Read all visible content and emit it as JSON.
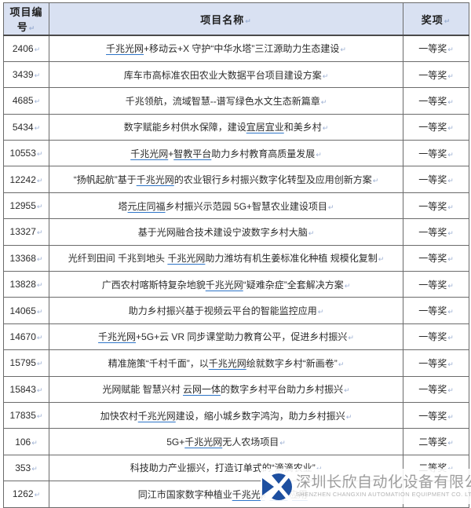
{
  "table": {
    "headers": {
      "code": "项目编号",
      "name": "项目名称",
      "award": "奖项"
    },
    "end_mark": "↵",
    "rows": [
      {
        "code": "2406",
        "award": "一等奖",
        "parts": [
          {
            "t": "千兆光网",
            "u": true
          },
          {
            "t": "+移动云+X 守护“中华水塔”三江源助力生态建设",
            "u": false
          }
        ]
      },
      {
        "code": "3439",
        "award": "一等奖",
        "parts": [
          {
            "t": "库车市高标准农田农业大数据平台项目建设方案",
            "u": false
          }
        ]
      },
      {
        "code": "4685",
        "award": "一等奖",
        "parts": [
          {
            "t": "千兆领航，流域智慧--谱写绿色水文生态新篇章",
            "u": false
          }
        ]
      },
      {
        "code": "5434",
        "award": "一等奖",
        "parts": [
          {
            "t": "数字赋能乡村供水保障，建设",
            "u": false
          },
          {
            "t": "宜居宜业",
            "u": true
          },
          {
            "t": "和美乡村",
            "u": false
          }
        ]
      },
      {
        "code": "10553",
        "award": "一等奖",
        "parts": [
          {
            "t": "千兆光网",
            "u": true
          },
          {
            "t": "+",
            "u": false
          },
          {
            "t": "智教平台",
            "u": true
          },
          {
            "t": "助力乡村教育高质量发展",
            "u": false
          }
        ]
      },
      {
        "code": "12242",
        "award": "一等奖",
        "parts": [
          {
            "t": "“扬帆起航”基于",
            "u": false
          },
          {
            "t": "千兆光网",
            "u": true
          },
          {
            "t": "的农业银行乡村振兴数字化转型及应用创新方案",
            "u": false
          }
        ]
      },
      {
        "code": "12955",
        "award": "一等奖",
        "parts": [
          {
            "t": "塔",
            "u": false
          },
          {
            "t": "元庄同福",
            "u": true
          },
          {
            "t": "乡村振兴示范园 5G+智慧农业建设项目",
            "u": false
          }
        ]
      },
      {
        "code": "13327",
        "award": "一等奖",
        "parts": [
          {
            "t": "基于光网融合技术建设宁波数字乡村大脑",
            "u": false
          }
        ]
      },
      {
        "code": "13368",
        "award": "一等奖",
        "parts": [
          {
            "t": "光纤到田间 千兆到地头 ",
            "u": false
          },
          {
            "t": "千兆光网",
            "u": true
          },
          {
            "t": "助力潍坊有机生姜标准化种植 规模化复制",
            "u": false
          }
        ]
      },
      {
        "code": "13828",
        "award": "一等奖",
        "parts": [
          {
            "t": "广西农村喀斯特复杂地貌",
            "u": false
          },
          {
            "t": "千兆光网",
            "u": true
          },
          {
            "t": "“疑难杂症”全套解决方案",
            "u": false
          }
        ]
      },
      {
        "code": "14065",
        "award": "一等奖",
        "parts": [
          {
            "t": "助力乡村振兴基于视频云平台的智能监控应用",
            "u": false
          }
        ]
      },
      {
        "code": "14670",
        "award": "一等奖",
        "parts": [
          {
            "t": "千兆光网",
            "u": true
          },
          {
            "t": "+5G+云 VR 同步课堂助力教育公平，促进乡村振兴",
            "u": false
          }
        ]
      },
      {
        "code": "15795",
        "award": "一等奖",
        "parts": [
          {
            "t": "精准施策“千村千面”，以",
            "u": false
          },
          {
            "t": "千兆光网",
            "u": true
          },
          {
            "t": "绘就数字乡村“新画卷”",
            "u": false
          }
        ]
      },
      {
        "code": "15843",
        "award": "一等奖",
        "parts": [
          {
            "t": "光网赋能 智慧兴村 ",
            "u": false
          },
          {
            "t": "云网一体",
            "u": true
          },
          {
            "t": "的数字乡村平台助力乡村振兴",
            "u": false
          }
        ]
      },
      {
        "code": "17835",
        "award": "一等奖",
        "parts": [
          {
            "t": "加快农村",
            "u": false
          },
          {
            "t": "千兆光网",
            "u": true
          },
          {
            "t": "建设，缩小城乡数字鸿沟，助力乡村振兴",
            "u": false
          }
        ]
      },
      {
        "code": "106",
        "award": "二等奖",
        "parts": [
          {
            "t": "5G+",
            "u": false
          },
          {
            "t": "千兆光网",
            "u": true
          },
          {
            "t": "无人农场项目",
            "u": false
          }
        ]
      },
      {
        "code": "353",
        "award": "二等奖",
        "parts": [
          {
            "t": "科技助力产业振兴，打造订单式的“滴滴农业”",
            "u": false
          }
        ]
      },
      {
        "code": "1262",
        "award": "",
        "parts": [
          {
            "t": "同江市国家数字种植业",
            "u": false
          },
          {
            "t": "千兆光网创新应用",
            "u": true
          }
        ]
      }
    ]
  },
  "watermark": {
    "company_cn": "深圳长欣自动化设备有限公司",
    "company_en": "SHENZHEN CHANGXIN AUTOMATION EQUIPMENT CO. LTD",
    "logo_color": "#1d4fa0"
  },
  "colors": {
    "header_bg": "#d9e1f2",
    "border": "#6b6b6b",
    "link_underline": "#2e75c8",
    "text": "#2b2b2b",
    "paragraph_mark": "#9db0d3"
  }
}
